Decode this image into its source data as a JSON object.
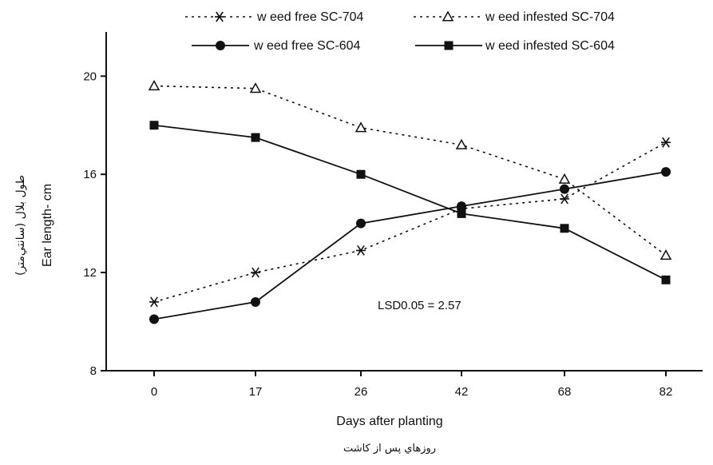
{
  "chart_data": {
    "type": "line",
    "title": "",
    "xlabel": "Days after planting",
    "xlabel_secondary": "روزهاي پس از کاشت",
    "ylabel": "Ear length- cm",
    "ylabel_secondary": "طول بلال (سانتي‌متر)",
    "categories": [
      "0",
      "17",
      "26",
      "42",
      "68",
      "82"
    ],
    "yticks": [
      "8",
      "12",
      "16",
      "20"
    ],
    "ylim": [
      8,
      21.8
    ],
    "grid": false,
    "legend_position": "top",
    "annotation": "LSD0.05 = 2.57",
    "series": [
      {
        "name": "w eed free SC-704",
        "values": [
          10.8,
          12.0,
          12.9,
          14.6,
          15.0,
          17.3
        ],
        "marker": "asterisk",
        "line": "dotted",
        "color": "#111111"
      },
      {
        "name": "w eed infested SC-704",
        "values": [
          19.6,
          19.5,
          17.9,
          17.2,
          15.8,
          12.7
        ],
        "marker": "triangle-open",
        "line": "dotted",
        "color": "#111111"
      },
      {
        "name": "w eed free SC-604",
        "values": [
          10.1,
          10.8,
          14.0,
          14.7,
          15.4,
          16.1
        ],
        "marker": "circle",
        "line": "solid",
        "color": "#111111"
      },
      {
        "name": "w eed infested SC-604",
        "values": [
          18.0,
          17.5,
          16.0,
          14.4,
          13.8,
          11.7
        ],
        "marker": "square",
        "line": "solid",
        "color": "#111111"
      }
    ]
  }
}
